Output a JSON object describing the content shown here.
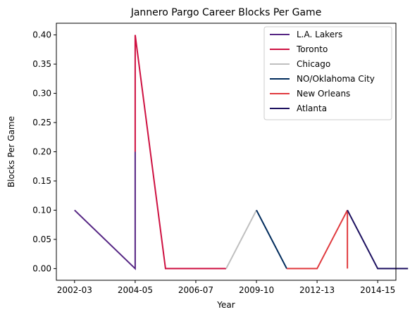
{
  "chart_data": {
    "type": "line",
    "title": "Jannero Pargo Career Blocks Per Game",
    "xlabel": "Year",
    "ylabel": "Blocks Per Game",
    "x_ticks": [
      "2002-03",
      "2004-05",
      "2006-07",
      "2009-10",
      "2012-13",
      "2014-15"
    ],
    "x_tick_positions": [
      0,
      2,
      4,
      6,
      8,
      10
    ],
    "xlim": [
      -0.6,
      10.6
    ],
    "ylim": [
      -0.02,
      0.42
    ],
    "y_ticks": [
      "0.00",
      "0.05",
      "0.10",
      "0.15",
      "0.20",
      "0.25",
      "0.30",
      "0.35",
      "0.40"
    ],
    "y_tick_values": [
      0,
      0.05,
      0.1,
      0.15,
      0.2,
      0.25,
      0.3,
      0.35,
      0.4
    ],
    "grid": false,
    "legend_position": "top-right",
    "series": [
      {
        "name": "L.A. Lakers",
        "color": "#552583",
        "points": [
          [
            0,
            0.1
          ],
          [
            2,
            0.0
          ],
          [
            2,
            0.2
          ]
        ]
      },
      {
        "name": "Toronto",
        "color": "#CE1141",
        "points": [
          [
            2,
            0.2
          ],
          [
            2,
            0.4
          ],
          [
            3,
            0.0
          ],
          [
            4,
            0.0
          ],
          [
            5,
            0.0
          ]
        ]
      },
      {
        "name": "Chicago",
        "color": "#BFBFBF",
        "points": [
          [
            5,
            0.0
          ],
          [
            6,
            0.1
          ]
        ]
      },
      {
        "name": "NO/Oklahoma City",
        "color": "#002B5C",
        "points": [
          [
            6,
            0.1
          ],
          [
            7,
            0.0
          ]
        ]
      },
      {
        "name": "New Orleans",
        "color": "#E03A3E",
        "points": [
          [
            7,
            0.0
          ],
          [
            8,
            0.0
          ],
          [
            9,
            0.1
          ],
          [
            9,
            0.0
          ]
        ]
      },
      {
        "name": "Atlanta",
        "color": "#1D1160",
        "points": [
          [
            9,
            0.1
          ],
          [
            10,
            0.0
          ],
          [
            11,
            0.0
          ]
        ]
      }
    ]
  }
}
